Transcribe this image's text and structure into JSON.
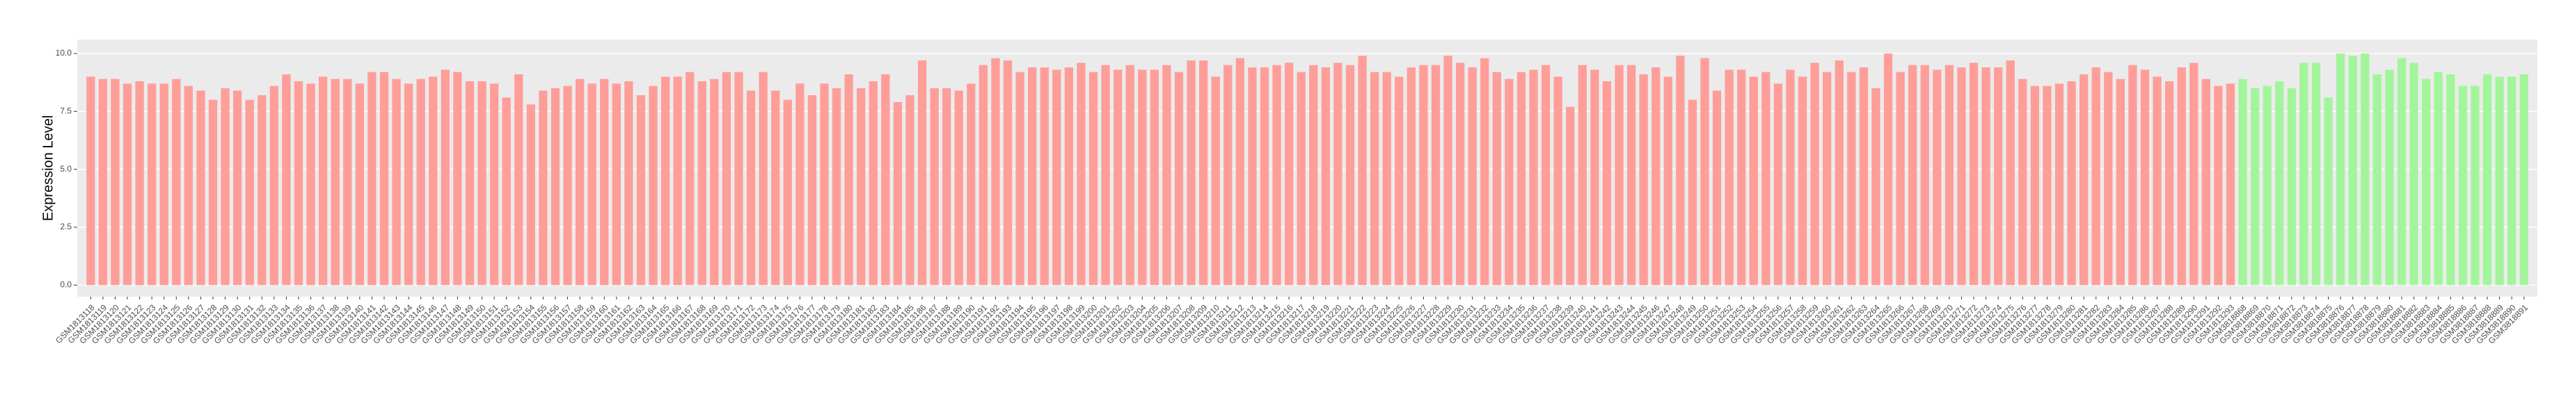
{
  "chart_data": {
    "type": "bar",
    "y_label": "Expression Level",
    "categories": [
      "GSM1813118",
      "GSM1813119",
      "GSM1813120",
      "GSM1813121",
      "GSM1813122",
      "GSM1813123",
      "GSM1813124",
      "GSM1813125",
      "GSM1813126",
      "GSM1813127",
      "GSM1813128",
      "GSM1813129",
      "GSM1813130",
      "GSM1813131",
      "GSM1813132",
      "GSM1813133",
      "GSM1813134",
      "GSM1813135",
      "GSM1813136",
      "GSM1813137",
      "GSM1813138",
      "GSM1813139",
      "GSM1813140",
      "GSM1813141",
      "GSM1813142",
      "GSM1813143",
      "GSM1813144",
      "GSM1813145",
      "GSM1813146",
      "GSM1813147",
      "GSM1813148",
      "GSM1813149",
      "GSM1813150",
      "GSM1813151",
      "GSM1813152",
      "GSM1813153",
      "GSM1813154",
      "GSM1813155",
      "GSM1813156",
      "GSM1813157",
      "GSM1813158",
      "GSM1813159",
      "GSM1813160",
      "GSM1813161",
      "GSM1813162",
      "GSM1813163",
      "GSM1813164",
      "GSM1813165",
      "GSM1813166",
      "GSM1813167",
      "GSM1813168",
      "GSM1813169",
      "GSM1813170",
      "GSM1813171",
      "GSM1813172",
      "GSM1813173",
      "GSM1813174",
      "GSM1813175",
      "GSM1813176",
      "GSM1813177",
      "GSM1813178",
      "GSM1813179",
      "GSM1813180",
      "GSM1813181",
      "GSM1813182",
      "GSM1813183",
      "GSM1813184",
      "GSM1813185",
      "GSM1813186",
      "GSM1813187",
      "GSM1813188",
      "GSM1813189",
      "GSM1813190",
      "GSM1813191",
      "GSM1813192",
      "GSM1813193",
      "GSM1813194",
      "GSM1813195",
      "GSM1813196",
      "GSM1813197",
      "GSM1813198",
      "GSM1813199",
      "GSM1813200",
      "GSM1813201",
      "GSM1813202",
      "GSM1813203",
      "GSM1813204",
      "GSM1813205",
      "GSM1813206",
      "GSM1813207",
      "GSM1813208",
      "GSM1813209",
      "GSM1813210",
      "GSM1813211",
      "GSM1813212",
      "GSM1813213",
      "GSM1813214",
      "GSM1813215",
      "GSM1813216",
      "GSM1813217",
      "GSM1813218",
      "GSM1813219",
      "GSM1813220",
      "GSM1813221",
      "GSM1813222",
      "GSM1813223",
      "GSM1813224",
      "GSM1813225",
      "GSM1813226",
      "GSM1813227",
      "GSM1813228",
      "GSM1813229",
      "GSM1813230",
      "GSM1813231",
      "GSM1813232",
      "GSM1813233",
      "GSM1813234",
      "GSM1813235",
      "GSM1813236",
      "GSM1813237",
      "GSM1813238",
      "GSM1813239",
      "GSM1813240",
      "GSM1813241",
      "GSM1813242",
      "GSM1813243",
      "GSM1813244",
      "GSM1813245",
      "GSM1813246",
      "GSM1813247",
      "GSM1813248",
      "GSM1813249",
      "GSM1813250",
      "GSM1813251",
      "GSM1813252",
      "GSM1813253",
      "GSM1813254",
      "GSM1813255",
      "GSM1813256",
      "GSM1813257",
      "GSM1813258",
      "GSM1813259",
      "GSM1813260",
      "GSM1813261",
      "GSM1813262",
      "GSM1813263",
      "GSM1813264",
      "GSM1813265",
      "GSM1813266",
      "GSM1813267",
      "GSM1813268",
      "GSM1813269",
      "GSM1813270",
      "GSM1813271",
      "GSM1813272",
      "GSM1813273",
      "GSM1813274",
      "GSM1813275",
      "GSM1813276",
      "GSM1813277",
      "GSM1813278",
      "GSM1813279",
      "GSM1813280",
      "GSM1813281",
      "GSM1813282",
      "GSM1813283",
      "GSM1813284",
      "GSM1813285",
      "GSM1813286",
      "GSM1813287",
      "GSM1813288",
      "GSM1813289",
      "GSM1813290",
      "GSM1813291",
      "GSM1813292",
      "GSM1813293",
      "GSM3818868",
      "GSM3818869",
      "GSM3818870",
      "GSM3818871",
      "GSM3818872",
      "GSM3818873",
      "GSM3818874",
      "GSM3818875",
      "GSM3818876",
      "GSM3818877",
      "GSM3818878",
      "GSM3818879",
      "GSM3818880",
      "GSM3818881",
      "GSM3818882",
      "GSM3818883",
      "GSM3818884",
      "GSM3818885",
      "GSM3818886",
      "GSM3818887",
      "GSM3818888",
      "GSM3818889",
      "GSM3818890",
      "GSM3818891"
    ],
    "values": [
      9.0,
      8.9,
      8.9,
      8.7,
      8.8,
      8.7,
      8.7,
      8.9,
      8.6,
      8.4,
      8.0,
      8.5,
      8.4,
      8.0,
      8.2,
      8.6,
      9.1,
      8.8,
      8.7,
      9.0,
      8.9,
      8.9,
      8.7,
      9.2,
      9.2,
      8.9,
      8.7,
      8.9,
      9.0,
      9.3,
      9.2,
      8.8,
      8.8,
      8.7,
      8.1,
      9.1,
      7.8,
      8.4,
      8.5,
      8.6,
      8.9,
      8.7,
      8.9,
      8.7,
      8.8,
      8.2,
      8.6,
      9.0,
      9.0,
      9.2,
      8.8,
      8.9,
      9.2,
      9.2,
      8.4,
      9.2,
      8.4,
      8.0,
      8.7,
      8.2,
      8.7,
      8.5,
      9.1,
      8.5,
      8.8,
      9.1,
      7.9,
      8.2,
      9.7,
      8.5,
      8.5,
      8.4,
      8.7,
      9.5,
      9.8,
      9.7,
      9.2,
      9.4,
      9.4,
      9.3,
      9.4,
      9.6,
      9.2,
      9.5,
      9.3,
      9.5,
      9.3,
      9.3,
      9.5,
      9.2,
      9.7,
      9.7,
      9.0,
      9.5,
      9.8,
      9.4,
      9.4,
      9.5,
      9.6,
      9.2,
      9.5,
      9.4,
      9.6,
      9.5,
      9.9,
      9.2,
      9.2,
      9.0,
      9.4,
      9.5,
      9.5,
      9.9,
      9.6,
      9.4,
      9.8,
      9.2,
      8.9,
      9.2,
      9.3,
      9.5,
      9.0,
      7.7,
      9.5,
      9.3,
      8.8,
      9.5,
      9.5,
      9.1,
      9.4,
      9.0,
      9.9,
      8.0,
      9.8,
      8.4,
      9.3,
      9.3,
      9.0,
      9.2,
      8.7,
      9.3,
      9.0,
      9.6,
      9.2,
      9.7,
      9.2,
      9.4,
      8.5,
      10.0,
      9.2,
      9.5,
      9.5,
      9.3,
      9.5,
      9.4,
      9.6,
      9.4,
      9.4,
      9.7,
      8.9,
      8.6,
      8.6,
      8.7,
      8.8,
      9.1,
      9.4,
      9.2,
      8.9,
      9.5,
      9.3,
      9.0,
      8.8,
      9.4,
      9.6,
      8.9,
      8.6,
      8.7,
      8.9,
      8.5,
      8.6,
      8.8,
      8.5,
      9.6,
      9.6,
      8.1,
      10.0,
      9.9,
      10.0,
      9.1,
      9.3,
      9.8,
      9.6,
      8.9,
      9.2,
      9.1,
      8.6,
      8.6,
      9.1,
      9.0,
      9.0,
      9.1
    ],
    "colors": [
      "#ff9e99",
      "#ff9e99",
      "#ff9e99",
      "#ff9e99",
      "#ff9e99",
      "#ff9e99",
      "#ff9e99",
      "#ff9e99",
      "#ff9e99",
      "#ff9e99",
      "#ff9e99",
      "#ff9e99",
      "#ff9e99",
      "#ff9e99",
      "#ff9e99",
      "#ff9e99",
      "#ff9e99",
      "#ff9e99",
      "#ff9e99",
      "#ff9e99",
      "#ff9e99",
      "#ff9e99",
      "#ff9e99",
      "#ff9e99",
      "#ff9e99",
      "#ff9e99",
      "#ff9e99",
      "#ff9e99",
      "#ff9e99",
      "#ff9e99",
      "#ff9e99",
      "#ff9e99",
      "#ff9e99",
      "#ff9e99",
      "#ff9e99",
      "#ff9e99",
      "#ff9e99",
      "#ff9e99",
      "#ff9e99",
      "#ff9e99",
      "#ff9e99",
      "#ff9e99",
      "#ff9e99",
      "#ff9e99",
      "#ff9e99",
      "#ff9e99",
      "#ff9e99",
      "#ff9e99",
      "#ff9e99",
      "#ff9e99",
      "#ff9e99",
      "#ff9e99",
      "#ff9e99",
      "#ff9e99",
      "#ff9e99",
      "#ff9e99",
      "#ff9e99",
      "#ff9e99",
      "#ff9e99",
      "#ff9e99",
      "#ff9e99",
      "#ff9e99",
      "#ff9e99",
      "#ff9e99",
      "#ff9e99",
      "#ff9e99",
      "#ff9e99",
      "#ff9e99",
      "#ff9e99",
      "#ff9e99",
      "#ff9e99",
      "#ff9e99",
      "#ff9e99",
      "#ff9e99",
      "#ff9e99",
      "#ff9e99",
      "#ff9e99",
      "#ff9e99",
      "#ff9e99",
      "#ff9e99",
      "#ff9e99",
      "#ff9e99",
      "#ff9e99",
      "#ff9e99",
      "#ff9e99",
      "#ff9e99",
      "#ff9e99",
      "#ff9e99",
      "#ff9e99",
      "#ff9e99",
      "#ff9e99",
      "#ff9e99",
      "#ff9e99",
      "#ff9e99",
      "#ff9e99",
      "#ff9e99",
      "#ff9e99",
      "#ff9e99",
      "#ff9e99",
      "#ff9e99",
      "#ff9e99",
      "#ff9e99",
      "#ff9e99",
      "#ff9e99",
      "#ff9e99",
      "#ff9e99",
      "#ff9e99",
      "#ff9e99",
      "#ff9e99",
      "#ff9e99",
      "#ff9e99",
      "#ff9e99",
      "#ff9e99",
      "#ff9e99",
      "#ff9e99",
      "#ff9e99",
      "#ff9e99",
      "#ff9e99",
      "#ff9e99",
      "#ff9e99",
      "#ff9e99",
      "#ff9e99",
      "#ff9e99",
      "#ff9e99",
      "#ff9e99",
      "#ff9e99",
      "#ff9e99",
      "#ff9e99",
      "#ff9e99",
      "#ff9e99",
      "#ff9e99",
      "#ff9e99",
      "#ff9e99",
      "#ff9e99",
      "#ff9e99",
      "#ff9e99",
      "#ff9e99",
      "#ff9e99",
      "#ff9e99",
      "#ff9e99",
      "#ff9e99",
      "#ff9e99",
      "#ff9e99",
      "#ff9e99",
      "#ff9e99",
      "#ff9e99",
      "#ff9e99",
      "#ff9e99",
      "#ff9e99",
      "#ff9e99",
      "#ff9e99",
      "#ff9e99",
      "#ff9e99",
      "#ff9e99",
      "#ff9e99",
      "#ff9e99",
      "#ff9e99",
      "#ff9e99",
      "#ff9e99",
      "#ff9e99",
      "#ff9e99",
      "#ff9e99",
      "#ff9e99",
      "#ff9e99",
      "#ff9e99",
      "#ff9e99",
      "#ff9e99",
      "#ff9e99",
      "#ff9e99",
      "#ff9e99",
      "#ff9e99",
      "#ff9e99",
      "#ff9e99",
      "#ff9e99",
      "#ff9e99",
      "#ff9e99",
      "#a3f59c",
      "#a3f59c",
      "#a3f59c",
      "#a3f59c",
      "#a3f59c",
      "#a3f59c",
      "#a3f59c",
      "#a3f59c",
      "#a3f59c",
      "#a3f59c",
      "#a3f59c",
      "#a3f59c",
      "#a3f59c",
      "#a3f59c",
      "#a3f59c",
      "#a3f59c",
      "#a3f59c",
      "#a3f59c",
      "#a3f59c",
      "#a3f59c",
      "#a3f59c",
      "#a3f59c",
      "#a3f59c",
      "#a3f59c"
    ],
    "ylim": [
      -0.5,
      10.6
    ],
    "yticks": [
      {
        "value": 0,
        "label": "0.0"
      },
      {
        "value": 2.5,
        "label": "2.5"
      },
      {
        "value": 5,
        "label": "5.0"
      },
      {
        "value": 7.5,
        "label": "7.5"
      },
      {
        "value": 10,
        "label": "10.0"
      }
    ],
    "grid": true
  }
}
